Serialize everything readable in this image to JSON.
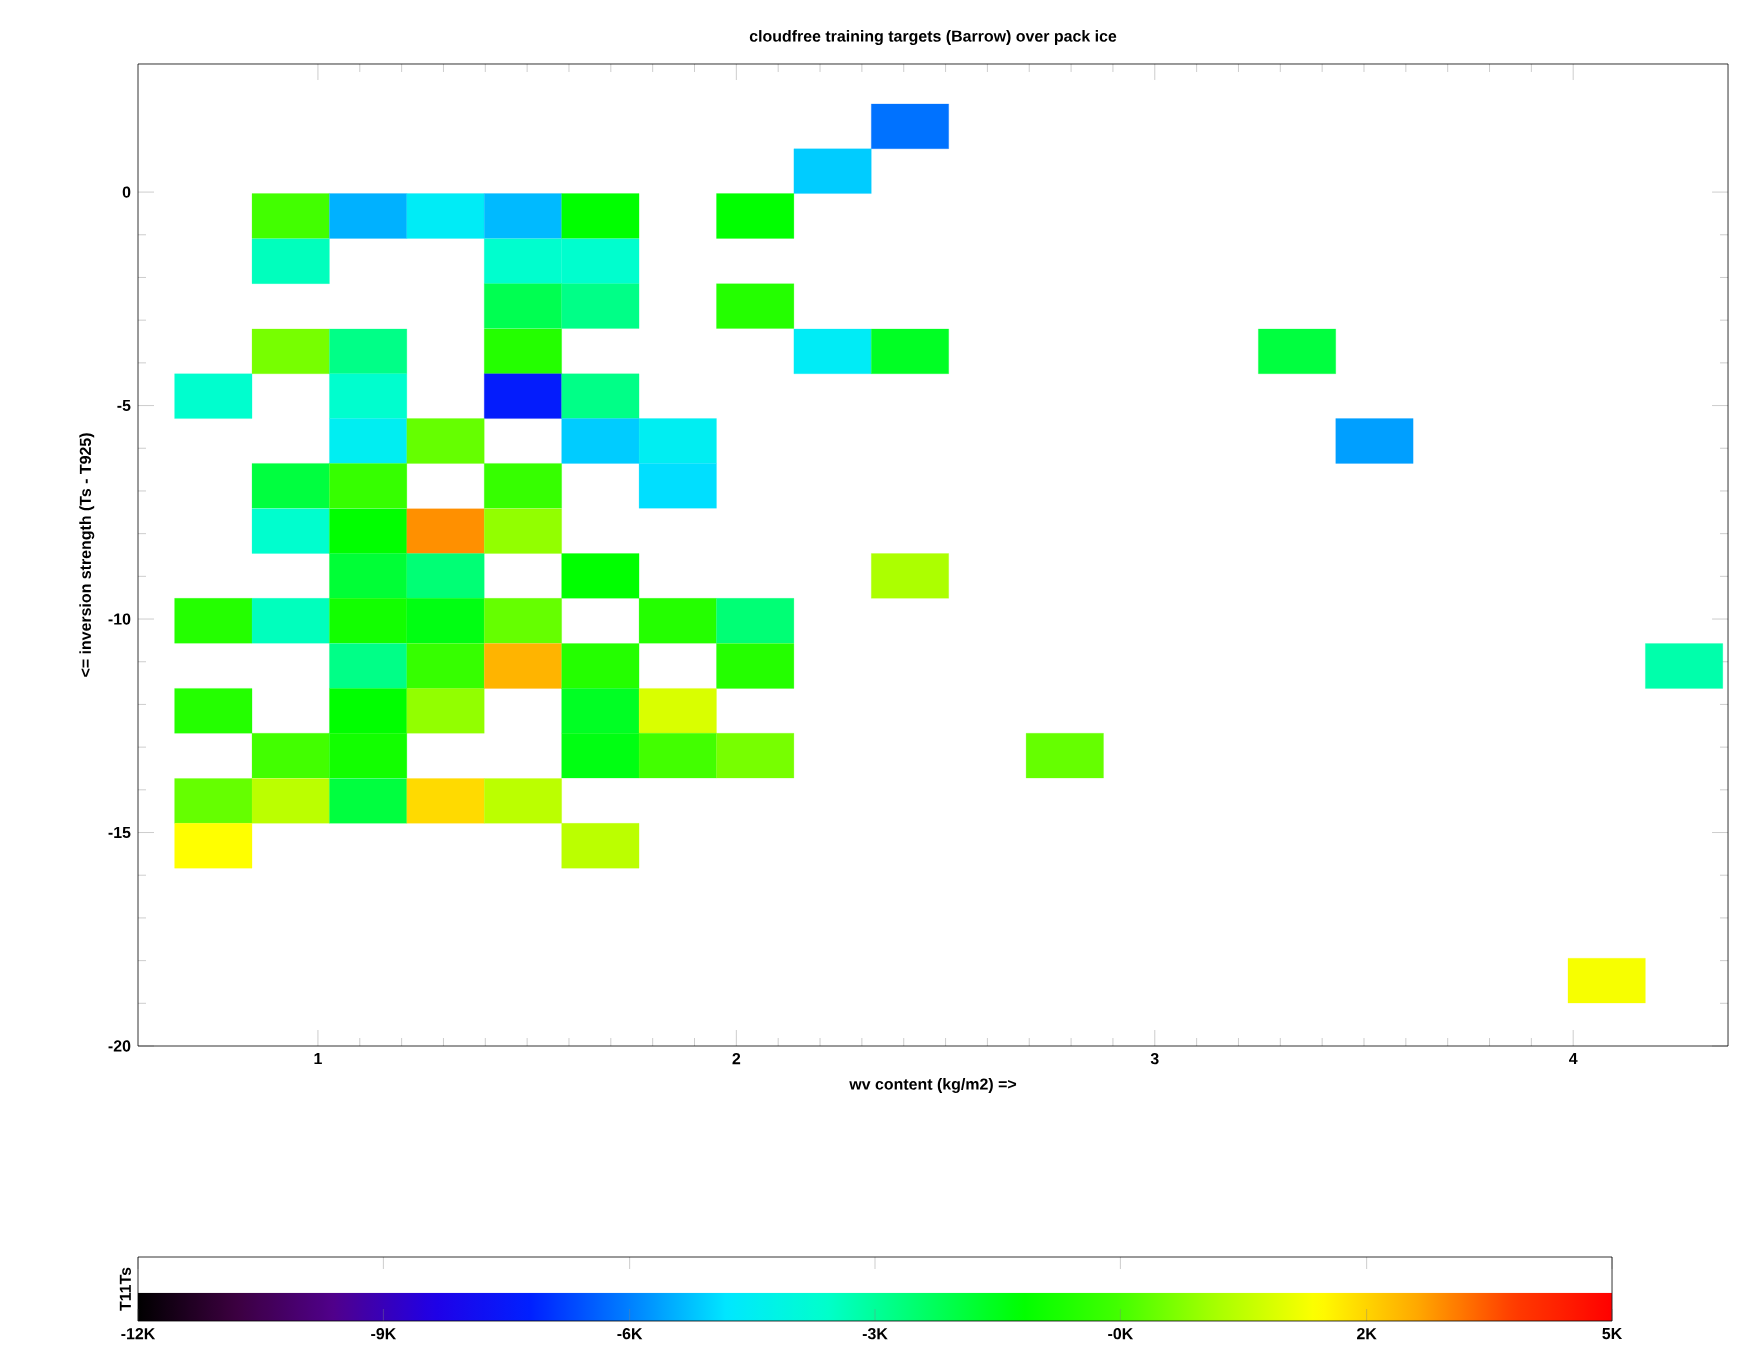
{
  "chart_data": {
    "type": "scatter",
    "marker": "square",
    "title": "cloudfree training targets (Barrow) over pack ice",
    "xlabel": "wv content (kg/m2) =>",
    "ylabel": "<= inversion strength (Ts - T925)",
    "clabel": "T11Ts",
    "x": [
      2.415,
      2.23,
      0.935,
      1.12,
      1.305,
      1.49,
      1.675,
      2.045,
      0.935,
      1.49,
      1.675,
      1.49,
      1.675,
      2.045,
      0.935,
      1.12,
      1.49,
      2.23,
      2.415,
      3.34,
      0.75,
      1.12,
      1.49,
      1.675,
      1.12,
      1.305,
      1.675,
      1.86,
      3.525,
      0.935,
      1.12,
      1.49,
      1.86,
      0.935,
      1.12,
      1.305,
      1.49,
      1.12,
      1.305,
      1.675,
      2.415,
      0.75,
      0.935,
      1.12,
      1.305,
      1.49,
      1.86,
      2.045,
      1.12,
      1.305,
      1.49,
      1.675,
      2.045,
      4.265,
      0.75,
      1.12,
      1.305,
      1.675,
      1.86,
      0.935,
      1.12,
      1.675,
      1.86,
      2.045,
      2.785,
      0.75,
      0.935,
      1.12,
      1.305,
      1.49,
      0.75,
      1.675,
      4.08
    ],
    "values": [
      1.54,
      0.49,
      -0.56,
      -0.56,
      -0.56,
      -0.56,
      -0.56,
      -0.56,
      -1.62,
      -1.62,
      -1.62,
      -2.67,
      -2.67,
      -2.67,
      -3.73,
      -3.73,
      -3.73,
      -3.73,
      -3.73,
      -3.73,
      -4.78,
      -4.78,
      -4.78,
      -4.78,
      -5.83,
      -5.83,
      -5.83,
      -5.83,
      -5.83,
      -6.88,
      -6.88,
      -6.88,
      -6.88,
      -7.94,
      -7.94,
      -7.94,
      -7.94,
      -8.99,
      -8.99,
      -8.99,
      -8.99,
      -10.04,
      -10.04,
      -10.04,
      -10.04,
      -10.04,
      -10.04,
      -10.04,
      -11.1,
      -11.1,
      -11.1,
      -11.1,
      -11.1,
      -11.1,
      -12.15,
      -12.15,
      -12.15,
      -12.15,
      -12.15,
      -13.2,
      -13.2,
      -13.2,
      -13.2,
      -13.2,
      -13.2,
      -14.26,
      -14.26,
      -14.26,
      -14.26,
      -14.26,
      -15.31,
      -15.31,
      -18.47
    ],
    "cvalues": [
      -6.5,
      -5.5,
      -0.7,
      -5.8,
      -5.0,
      -5.7,
      -1.8,
      -1.8,
      -3.9,
      -4.1,
      -4.1,
      -2.7,
      -3.3,
      -1.2,
      -0.1,
      -3.3,
      -1.2,
      -5.0,
      -2.2,
      -2.5,
      -4.1,
      -4.1,
      -7.6,
      -3.3,
      -4.9,
      -0.3,
      -5.5,
      -4.9,
      -6.0,
      -2.5,
      -0.9,
      -0.9,
      -5.3,
      -4.1,
      -1.8,
      3.0,
      0.2,
      -2.4,
      -3.1,
      -1.8,
      0.5,
      -1.2,
      -3.9,
      -1.5,
      -2.0,
      -0.3,
      -1.2,
      -3.1,
      -3.3,
      -0.9,
      2.6,
      -1.2,
      -1.2,
      -3.7,
      -1.2,
      -1.8,
      0.2,
      -2.2,
      1.1,
      -0.7,
      -1.5,
      -2.0,
      -0.7,
      -0.1,
      -0.3,
      -0.3,
      0.7,
      -2.5,
      2.1,
      0.7,
      1.6,
      0.7,
      1.5
    ],
    "xlim": [
      0.57,
      4.37
    ],
    "ylim": [
      -20,
      3
    ],
    "xticks": [
      1,
      2,
      3,
      4
    ],
    "yticks": [
      -20,
      -15,
      -10,
      -5,
      0
    ],
    "clim": [
      -12,
      5
    ],
    "cticks": [
      {
        "value": -12,
        "label": "-12K"
      },
      {
        "value": -9.17,
        "label": "-9K"
      },
      {
        "value": -6.33,
        "label": "-6K"
      },
      {
        "value": -3.5,
        "label": "-3K"
      },
      {
        "value": -0.67,
        "label": "-0K"
      },
      {
        "value": 2.17,
        "label": "2K"
      },
      {
        "value": 5,
        "label": "5K"
      }
    ]
  }
}
